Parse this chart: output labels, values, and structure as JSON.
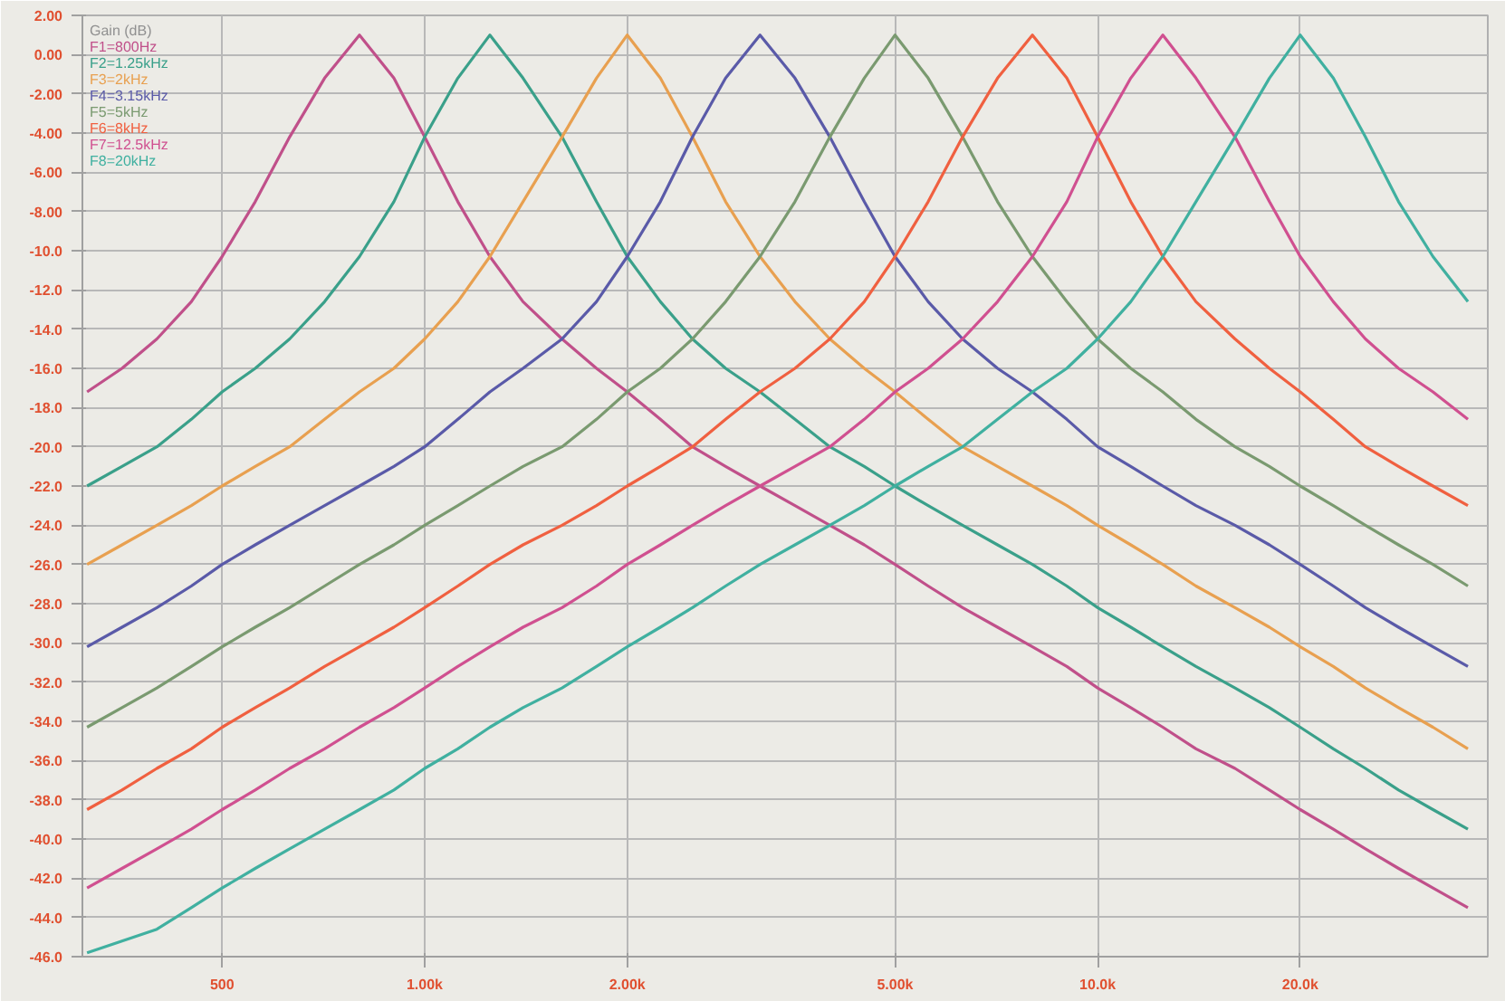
{
  "chart_data": {
    "type": "line",
    "legend_title": "Gain (dB)",
    "log": "x",
    "grid": true,
    "legend": "top left",
    "line_style": "solid",
    "x": [
      315,
      355,
      400,
      450,
      500,
      560,
      630,
      710,
      800,
      900,
      1000,
      1120,
      1250,
      1400,
      1600,
      1800,
      2000,
      2240,
      2500,
      2800,
      3150,
      3550,
      4000,
      4500,
      5000,
      5600,
      6300,
      7100,
      8000,
      9000,
      10000,
      11200,
      12500,
      14000,
      16000,
      18000,
      20000,
      22400,
      25000,
      28000,
      31500,
      35500
    ],
    "xlim": [
      310,
      38000
    ],
    "xticks": [
      {
        "value": 500,
        "label": "500"
      },
      {
        "value": 1000,
        "label": "1.00k"
      },
      {
        "value": 2000,
        "label": "2.00k"
      },
      {
        "value": 5000,
        "label": "5.00k"
      },
      {
        "value": 10000,
        "label": "10.0k"
      },
      {
        "value": 20000,
        "label": "20.0k"
      }
    ],
    "ylim": [
      -46,
      2
    ],
    "yticks": [
      {
        "value": 2,
        "label": "2.00"
      },
      {
        "value": 0,
        "label": "0.00"
      },
      {
        "value": -2,
        "label": "-2.00"
      },
      {
        "value": -4,
        "label": "-4.00"
      },
      {
        "value": -6,
        "label": "-6.00"
      },
      {
        "value": -8,
        "label": "-8.00"
      },
      {
        "value": -10,
        "label": "-10.0"
      },
      {
        "value": -12,
        "label": "-12.0"
      },
      {
        "value": -14,
        "label": "-14.0"
      },
      {
        "value": -16,
        "label": "-16.0"
      },
      {
        "value": -18,
        "label": "-18.0"
      },
      {
        "value": -20,
        "label": "-20.0"
      },
      {
        "value": -22,
        "label": "-22.0"
      },
      {
        "value": -24,
        "label": "-24.0"
      },
      {
        "value": -26,
        "label": "-26.0"
      },
      {
        "value": -28,
        "label": "-28.0"
      },
      {
        "value": -30,
        "label": "-30.0"
      },
      {
        "value": -32,
        "label": "-32.0"
      },
      {
        "value": -34,
        "label": "-34.0"
      },
      {
        "value": -36,
        "label": "-36.0"
      },
      {
        "value": -38,
        "label": "-38.0"
      },
      {
        "value": -40,
        "label": "-40.0"
      },
      {
        "value": -42,
        "label": "-42.0"
      },
      {
        "value": -44,
        "label": "-44.0"
      },
      {
        "value": -46,
        "label": "-46.0"
      }
    ],
    "series": [
      {
        "name": "F1=800Hz",
        "color": "#c0508a",
        "values": [
          -17.2,
          -16.0,
          -14.5,
          -12.6,
          -10.3,
          -7.5,
          -4.2,
          -1.2,
          1.0,
          -1.2,
          -4.2,
          -7.5,
          -10.3,
          -12.6,
          -14.5,
          -16.0,
          -17.2,
          -18.6,
          -20.0,
          -21.0,
          -22.0,
          -23.0,
          -24.0,
          -25.0,
          -26.0,
          -27.1,
          -28.2,
          -29.2,
          -30.2,
          -31.2,
          -32.3,
          -33.3,
          -34.3,
          -35.4,
          -36.4,
          -37.5,
          -38.5,
          -39.5,
          -40.5,
          -41.5,
          -42.5,
          -43.5
        ]
      },
      {
        "name": "F2=1.25kHz",
        "color": "#3aa08a",
        "values": [
          -22.0,
          -21.0,
          -20.0,
          -18.6,
          -17.2,
          -16.0,
          -14.5,
          -12.6,
          -10.3,
          -7.5,
          -4.2,
          -1.2,
          1.0,
          -1.2,
          -4.2,
          -7.5,
          -10.3,
          -12.6,
          -14.5,
          -16.0,
          -17.2,
          -18.6,
          -20.0,
          -21.0,
          -22.0,
          -23.0,
          -24.0,
          -25.0,
          -26.0,
          -27.1,
          -28.2,
          -29.2,
          -30.2,
          -31.2,
          -32.3,
          -33.3,
          -34.3,
          -35.4,
          -36.4,
          -37.5,
          -38.5,
          -39.5
        ]
      },
      {
        "name": "F3=2kHz",
        "color": "#e8a050",
        "values": [
          -26.0,
          -25.0,
          -24.0,
          -23.0,
          -22.0,
          -21.0,
          -20.0,
          -18.6,
          -17.2,
          -16.0,
          -14.5,
          -12.6,
          -10.3,
          -7.5,
          -4.2,
          -1.2,
          1.0,
          -1.2,
          -4.2,
          -7.5,
          -10.3,
          -12.6,
          -14.5,
          -16.0,
          -17.2,
          -18.6,
          -20.0,
          -21.0,
          -22.0,
          -23.0,
          -24.0,
          -25.0,
          -26.0,
          -27.1,
          -28.2,
          -29.2,
          -30.2,
          -31.2,
          -32.3,
          -33.3,
          -34.3,
          -35.4
        ]
      },
      {
        "name": "F4=3.15kHz",
        "color": "#5a5aa8",
        "values": [
          -30.2,
          -29.2,
          -28.2,
          -27.1,
          -26.0,
          -25.0,
          -24.0,
          -23.0,
          -22.0,
          -21.0,
          -20.0,
          -18.6,
          -17.2,
          -16.0,
          -14.5,
          -12.6,
          -10.3,
          -7.5,
          -4.2,
          -1.2,
          1.0,
          -1.2,
          -4.2,
          -7.5,
          -10.3,
          -12.6,
          -14.5,
          -16.0,
          -17.2,
          -18.6,
          -20.0,
          -21.0,
          -22.0,
          -23.0,
          -24.0,
          -25.0,
          -26.0,
          -27.1,
          -28.2,
          -29.2,
          -30.2,
          -31.2
        ]
      },
      {
        "name": "F5=5kHz",
        "color": "#7a9a70",
        "values": [
          -34.3,
          -33.3,
          -32.3,
          -31.2,
          -30.2,
          -29.2,
          -28.2,
          -27.1,
          -26.0,
          -25.0,
          -24.0,
          -23.0,
          -22.0,
          -21.0,
          -20.0,
          -18.6,
          -17.2,
          -16.0,
          -14.5,
          -12.6,
          -10.3,
          -7.5,
          -4.2,
          -1.2,
          1.0,
          -1.2,
          -4.2,
          -7.5,
          -10.3,
          -12.6,
          -14.5,
          -16.0,
          -17.2,
          -18.6,
          -20.0,
          -21.0,
          -22.0,
          -23.0,
          -24.0,
          -25.0,
          -26.0,
          -27.1
        ]
      },
      {
        "name": "F6=8kHz",
        "color": "#f06040",
        "values": [
          -38.5,
          -37.5,
          -36.4,
          -35.4,
          -34.3,
          -33.3,
          -32.3,
          -31.2,
          -30.2,
          -29.2,
          -28.2,
          -27.1,
          -26.0,
          -25.0,
          -24.0,
          -23.0,
          -22.0,
          -21.0,
          -20.0,
          -18.6,
          -17.2,
          -16.0,
          -14.5,
          -12.6,
          -10.3,
          -7.5,
          -4.2,
          -1.2,
          1.0,
          -1.2,
          -4.2,
          -7.5,
          -10.3,
          -12.6,
          -14.5,
          -16.0,
          -17.2,
          -18.6,
          -20.0,
          -21.0,
          -22.0,
          -23.0
        ]
      },
      {
        "name": "F7=12.5kHz",
        "color": "#d05090",
        "values": [
          -42.5,
          -41.5,
          -40.5,
          -39.5,
          -38.5,
          -37.5,
          -36.4,
          -35.4,
          -34.3,
          -33.3,
          -32.3,
          -31.2,
          -30.2,
          -29.2,
          -28.2,
          -27.1,
          -26.0,
          -25.0,
          -24.0,
          -23.0,
          -22.0,
          -21.0,
          -20.0,
          -18.6,
          -17.2,
          -16.0,
          -14.5,
          -12.6,
          -10.3,
          -7.5,
          -4.2,
          -1.2,
          1.0,
          -1.2,
          -4.2,
          -7.5,
          -10.3,
          -12.6,
          -14.5,
          -16.0,
          -17.2,
          -18.6
        ]
      },
      {
        "name": "F8=20kHz",
        "color": "#40b0a0",
        "values": [
          -45.8,
          -45.2,
          -44.6,
          -43.5,
          -42.5,
          -41.5,
          -40.5,
          -39.5,
          -38.5,
          -37.5,
          -36.4,
          -35.4,
          -34.3,
          -33.3,
          -32.3,
          -31.2,
          -30.2,
          -29.2,
          -28.2,
          -27.1,
          -26.0,
          -25.0,
          -24.0,
          -23.0,
          -22.0,
          -21.0,
          -20.0,
          -18.6,
          -17.2,
          -16.0,
          -14.5,
          -12.6,
          -10.3,
          -7.5,
          -4.2,
          -1.2,
          1.0,
          -1.2,
          -4.2,
          -7.5,
          -10.3,
          -12.6
        ]
      }
    ]
  }
}
